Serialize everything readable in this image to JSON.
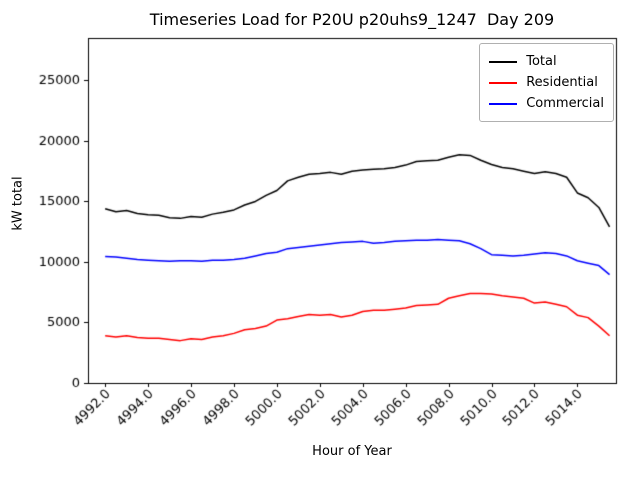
{
  "title": "Timeseries Load for P20U p20uhs9_1247  Day 209",
  "chart_data": {
    "type": "line",
    "title": "Timeseries Load for P20U p20uhs9_1247  Day 209",
    "xlabel": "Hour of Year",
    "ylabel": "kW total",
    "xlim": [
      4991.2,
      5015.8
    ],
    "ylim": [
      0,
      28500
    ],
    "grid": false,
    "legend_position": "top-right",
    "xticks": {
      "values": [
        4992,
        4994,
        4996,
        4998,
        5000,
        5002,
        5004,
        5006,
        5008,
        5010,
        5012,
        5014
      ],
      "labels": [
        "4992.0",
        "4994.0",
        "4996.0",
        "4998.0",
        "5000.0",
        "5002.0",
        "5004.0",
        "5006.0",
        "5008.0",
        "5010.0",
        "5012.0",
        "5014.0"
      ]
    },
    "yticks": {
      "values": [
        0,
        5000,
        10000,
        15000,
        20000,
        25000
      ],
      "labels": [
        "0",
        "5000",
        "10000",
        "15000",
        "20000",
        "25000"
      ]
    },
    "x": [
      4992.0,
      4992.5,
      4993.0,
      4993.5,
      4994.0,
      4994.5,
      4995.0,
      4995.5,
      4996.0,
      4996.5,
      4997.0,
      4997.5,
      4998.0,
      4998.5,
      4999.0,
      4999.5,
      5000.0,
      5000.5,
      5001.0,
      5001.5,
      5002.0,
      5002.5,
      5003.0,
      5003.5,
      5004.0,
      5004.5,
      5005.0,
      5005.5,
      5006.0,
      5006.5,
      5007.0,
      5007.5,
      5008.0,
      5008.5,
      5009.0,
      5009.5,
      5010.0,
      5010.5,
      5011.0,
      5011.5,
      5012.0,
      5012.5,
      5013.0,
      5013.5,
      5014.0,
      5014.5,
      5015.0,
      5015.5
    ],
    "series": [
      {
        "name": "Total",
        "color": "#000000",
        "values": [
          14400,
          14150,
          14250,
          14000,
          13900,
          13850,
          13650,
          13600,
          13750,
          13700,
          13950,
          14100,
          14300,
          14700,
          15000,
          15500,
          15900,
          16700,
          17000,
          17250,
          17300,
          17400,
          17250,
          17500,
          17600,
          17650,
          17700,
          17800,
          18000,
          18300,
          18350,
          18400,
          18650,
          18850,
          18800,
          18400,
          18050,
          17800,
          17700,
          17500,
          17300,
          17450,
          17300,
          17000,
          15700,
          15300,
          14500,
          12900
        ]
      },
      {
        "name": "Residential",
        "color": "#ff0000",
        "values": [
          3900,
          3800,
          3900,
          3750,
          3700,
          3700,
          3600,
          3500,
          3650,
          3600,
          3800,
          3900,
          4100,
          4400,
          4500,
          4700,
          5200,
          5300,
          5500,
          5650,
          5600,
          5650,
          5450,
          5600,
          5900,
          6000,
          6000,
          6100,
          6200,
          6400,
          6450,
          6500,
          7000,
          7200,
          7400,
          7400,
          7350,
          7200,
          7100,
          7000,
          6600,
          6700,
          6500,
          6300,
          5600,
          5400,
          4700,
          3900
        ]
      },
      {
        "name": "Commercial",
        "color": "#0000ff",
        "values": [
          10450,
          10400,
          10300,
          10200,
          10150,
          10100,
          10050,
          10100,
          10100,
          10050,
          10150,
          10150,
          10200,
          10300,
          10500,
          10700,
          10800,
          11100,
          11200,
          11300,
          11400,
          11500,
          11600,
          11650,
          11700,
          11550,
          11600,
          11700,
          11750,
          11800,
          11800,
          11850,
          11800,
          11750,
          11500,
          11100,
          10600,
          10550,
          10500,
          10550,
          10650,
          10750,
          10700,
          10500,
          10100,
          9900,
          9700,
          8950
        ]
      }
    ]
  }
}
